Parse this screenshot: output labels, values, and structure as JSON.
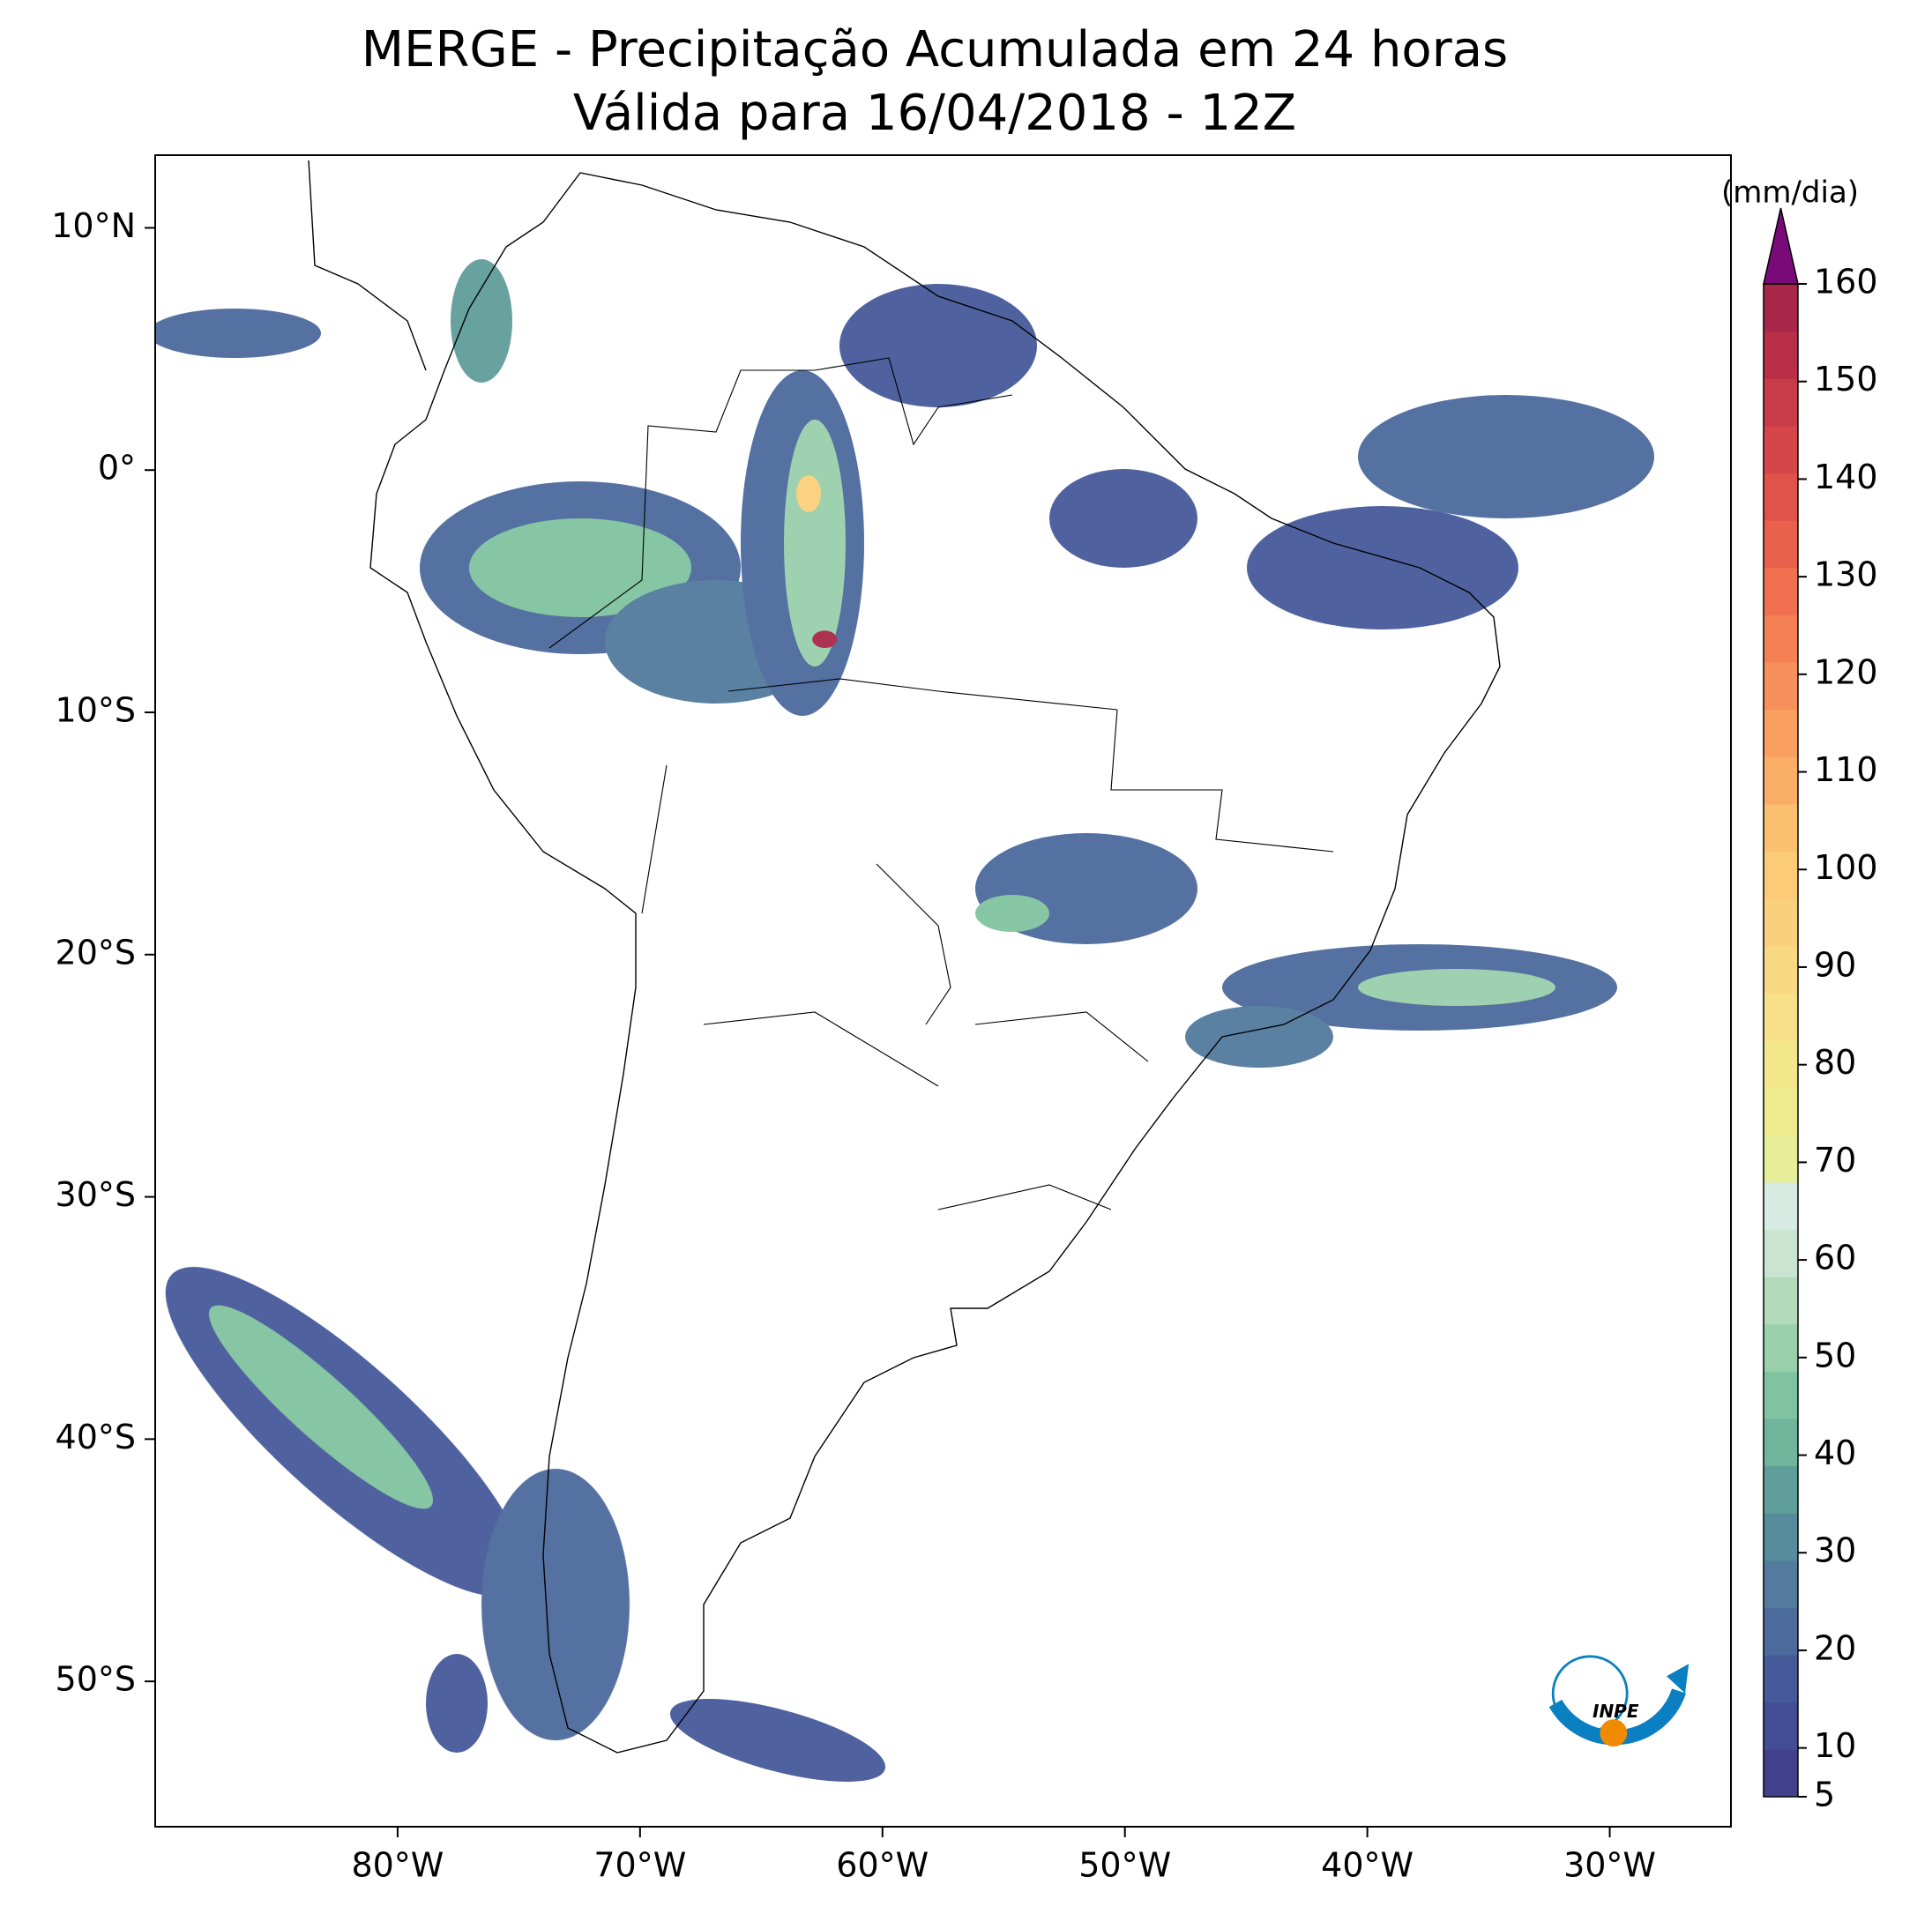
{
  "map": {
    "title": "MERGE - Precipitação Acumulada em 24 horas",
    "subtitle": "Válida para 16/04/2018 - 12Z",
    "xlim": [
      -90,
      -25
    ],
    "ylim": [
      -56,
      13
    ],
    "xticks": [
      {
        "value": -80,
        "label": "80°W"
      },
      {
        "value": -70,
        "label": "70°W"
      },
      {
        "value": -60,
        "label": "60°W"
      },
      {
        "value": -50,
        "label": "50°W"
      },
      {
        "value": -40,
        "label": "40°W"
      },
      {
        "value": -30,
        "label": "30°W"
      }
    ],
    "yticks": [
      {
        "value": 10,
        "label": "10°N"
      },
      {
        "value": 0,
        "label": "0°"
      },
      {
        "value": -10,
        "label": "10°S"
      },
      {
        "value": -20,
        "label": "20°S"
      },
      {
        "value": -30,
        "label": "30°S"
      },
      {
        "value": -40,
        "label": "40°S"
      },
      {
        "value": -50,
        "label": "50°S"
      }
    ],
    "colorbar": {
      "label": "(mm/dia)",
      "range": [
        5,
        160
      ],
      "ticks": [
        5,
        10,
        20,
        30,
        40,
        50,
        60,
        70,
        80,
        90,
        100,
        110,
        120,
        130,
        140,
        150,
        160
      ],
      "colors": [
        "#42408c",
        "#434d96",
        "#465a9a",
        "#4c6a9c",
        "#527b9e",
        "#568c9c",
        "#5f9e9a",
        "#6fb49b",
        "#80c3a0",
        "#99cfab",
        "#b2dabb",
        "#c9e5d2",
        "#d7ebe2",
        "#e6ee97",
        "#eeea8e",
        "#f4e68a",
        "#f8e08a",
        "#f9d882",
        "#fad07c",
        "#fbcb78",
        "#fbbf70",
        "#faae66",
        "#f9a060",
        "#f7905a",
        "#f48054",
        "#f0704f",
        "#e9604c",
        "#e1524a",
        "#d54549",
        "#c83b49",
        "#b92f48",
        "#a8264a"
      ],
      "extend_color": "#7a0a77"
    },
    "logo_text": "INPE"
  }
}
